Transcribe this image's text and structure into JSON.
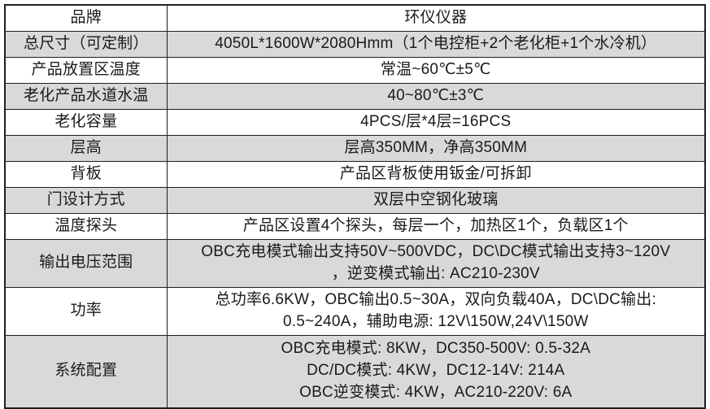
{
  "page": {
    "type": "product-spec-table",
    "language": "zh-CN"
  },
  "colors": {
    "shaded_row_bg": "#d9d9d9",
    "plain_row_bg": "#ffffff",
    "border": "#1f1f1f",
    "text": "#1a1a1a"
  },
  "rows": [
    {
      "label": "品牌",
      "value_lines": [
        "环仪仪器"
      ],
      "shaded": false,
      "lines": 1
    },
    {
      "label": "总尺寸（可定制）",
      "value_lines": [
        "4050L*1600W*2080Hmm（1个电控柜+2个老化柜+1个水冷机）"
      ],
      "shaded": true,
      "lines": 1
    },
    {
      "label": "产品放置区温度",
      "value_lines": [
        "常温~60℃±5℃"
      ],
      "shaded": false,
      "lines": 1
    },
    {
      "label": "老化产品水道水温",
      "value_lines": [
        "40~80℃±3℃"
      ],
      "shaded": true,
      "lines": 1
    },
    {
      "label": "老化容量",
      "value_lines": [
        "4PCS/层*4层=16PCS"
      ],
      "shaded": false,
      "lines": 1
    },
    {
      "label": "层高",
      "value_lines": [
        "层高350MM，净高350MM"
      ],
      "shaded": true,
      "lines": 1
    },
    {
      "label": "背板",
      "value_lines": [
        "产品区背板使用钣金/可拆卸"
      ],
      "shaded": false,
      "lines": 1
    },
    {
      "label": "门设计方式",
      "value_lines": [
        "双层中空钢化玻璃"
      ],
      "shaded": true,
      "lines": 1
    },
    {
      "label": "温度探头",
      "value_lines": [
        "产品区设置4个探头，每层一个，加热区1个，负载区1个"
      ],
      "shaded": false,
      "lines": 1
    },
    {
      "label": "输出电压范围",
      "value_lines": [
        "OBC充电模式输出支持50V~500VDC，DC\\DC模式输出支持3~120V",
        "，逆变模式输出: AC210-230V"
      ],
      "shaded": true,
      "lines": 2
    },
    {
      "label": "功率",
      "value_lines": [
        "总功率6.6KW，OBC输出0.5~30A，双向负载40A，DC\\DC输出:",
        "0.5~240A，辅助电源: 12V\\150W,24V\\150W"
      ],
      "shaded": false,
      "lines": 2
    },
    {
      "label": "系统配置",
      "value_lines": [
        "OBC充电模式: 8KW，DC350-500V: 0.5-32A",
        "DC/DC模式: 4KW，DC12-14V: 214A",
        "OBC逆变模式: 4KW，AC210-220V: 6A"
      ],
      "shaded": true,
      "lines": 3
    }
  ]
}
